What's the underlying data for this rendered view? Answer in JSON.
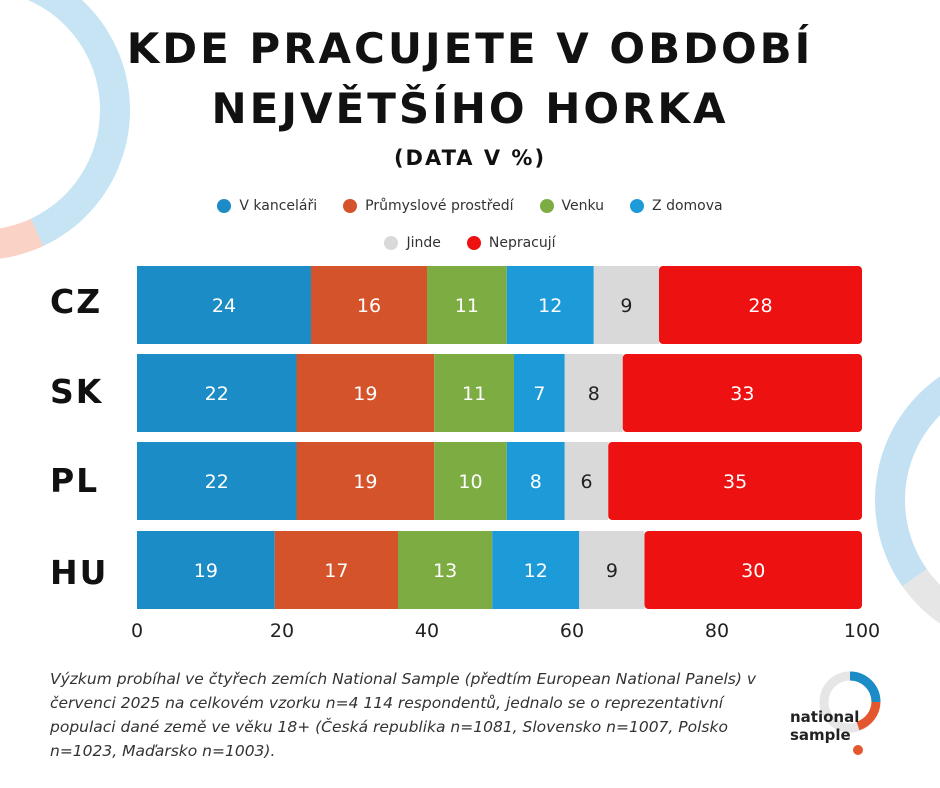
{
  "title_line1": "KDE PRACUJETE V OBDOBÍ",
  "title_line2": "NEJVĚTŠÍHO HORKA",
  "subtitle": "(DATA V %)",
  "colors": {
    "office": "#1b8cc5",
    "industrial": "#d4532a",
    "outdoors": "#7cac42",
    "home": "#1d9bd9",
    "elsewhere": "#d9d9d9",
    "not_working": "#ee1111"
  },
  "chart_data": {
    "type": "bar",
    "orientation": "horizontal",
    "stacked": true,
    "categories": [
      "CZ",
      "SK",
      "PL",
      "HU"
    ],
    "series": [
      {
        "name": "V kanceláři",
        "values": [
          24,
          22,
          22,
          19
        ]
      },
      {
        "name": "Průmyslové prostředí",
        "values": [
          16,
          19,
          19,
          17
        ]
      },
      {
        "name": "Venku",
        "values": [
          11,
          11,
          10,
          13
        ]
      },
      {
        "name": "Z domova",
        "values": [
          12,
          7,
          8,
          12
        ]
      },
      {
        "name": "Jinde",
        "values": [
          9,
          8,
          6,
          9
        ]
      },
      {
        "name": "Nepracují",
        "values": [
          28,
          33,
          35,
          30
        ]
      }
    ],
    "xlim": [
      0,
      100
    ],
    "xticks": [
      "0",
      "20",
      "40",
      "60",
      "80",
      "100"
    ],
    "legend_position": "top",
    "grid": false
  },
  "note": "Výzkum probíhal ve čtyřech zemích National Sample (předtím European National Panels) v červenci 2025 na celkovém vzorku n=4 114 respondentů, jednalo se o reprezentativní populaci dané země ve věku 18+ (Česká republika n=1081, Slovensko n=1007, Polsko n=1023, Maďarsko n=1003).",
  "logo": {
    "line1": "national",
    "line2": "sample"
  }
}
